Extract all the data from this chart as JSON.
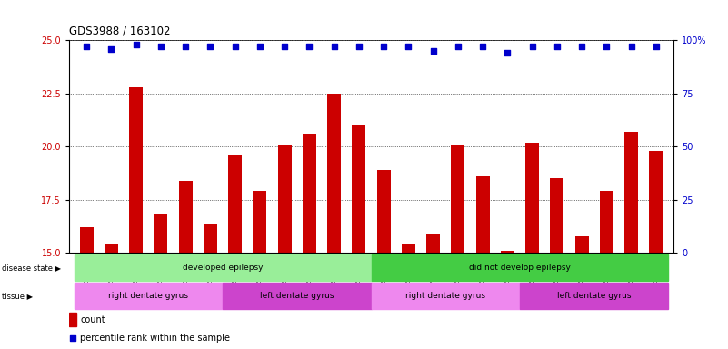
{
  "title": "GDS3988 / 163102",
  "samples": [
    "GSM671498",
    "GSM671500",
    "GSM671502",
    "GSM671510",
    "GSM671512",
    "GSM671514",
    "GSM671499",
    "GSM671501",
    "GSM671503",
    "GSM671511",
    "GSM671513",
    "GSM671515",
    "GSM671504",
    "GSM671506",
    "GSM671508",
    "GSM671517",
    "GSM671519",
    "GSM671521",
    "GSM671505",
    "GSM671507",
    "GSM671509",
    "GSM671516",
    "GSM671518",
    "GSM671520"
  ],
  "counts": [
    16.2,
    15.4,
    22.8,
    16.8,
    18.4,
    16.4,
    19.6,
    17.9,
    20.1,
    20.6,
    22.5,
    21.0,
    18.9,
    15.4,
    15.9,
    20.1,
    18.6,
    15.1,
    20.2,
    18.5,
    15.8,
    17.9,
    20.7,
    19.8
  ],
  "percentiles": [
    97,
    96,
    98,
    97,
    97,
    97,
    97,
    97,
    97,
    97,
    97,
    97,
    97,
    97,
    95,
    97,
    97,
    94,
    97,
    97,
    97,
    97,
    97,
    97
  ],
  "ylim_left": [
    15,
    25
  ],
  "ylim_right": [
    0,
    100
  ],
  "yticks_left": [
    15,
    17.5,
    20,
    22.5,
    25
  ],
  "yticks_right": [
    0,
    25,
    50,
    75,
    100
  ],
  "bar_color": "#cc0000",
  "dot_color": "#0000cc",
  "grid_color": "#000000",
  "disease_state_groups": [
    {
      "label": "developed epilepsy",
      "start": 0,
      "end": 12,
      "color": "#99ee99"
    },
    {
      "label": "did not develop epilepsy",
      "start": 12,
      "end": 24,
      "color": "#44cc44"
    }
  ],
  "tissue_groups": [
    {
      "label": "right dentate gyrus",
      "start": 0,
      "end": 6,
      "color": "#ee88ee"
    },
    {
      "label": "left dentate gyrus",
      "start": 6,
      "end": 12,
      "color": "#cc44cc"
    },
    {
      "label": "right dentate gyrus",
      "start": 12,
      "end": 18,
      "color": "#ee88ee"
    },
    {
      "label": "left dentate gyrus",
      "start": 18,
      "end": 24,
      "color": "#cc44cc"
    }
  ],
  "legend_count_color": "#cc0000",
  "legend_pct_color": "#0000cc",
  "bg_color": "#ffffff",
  "plot_bg_color": "#ffffff"
}
